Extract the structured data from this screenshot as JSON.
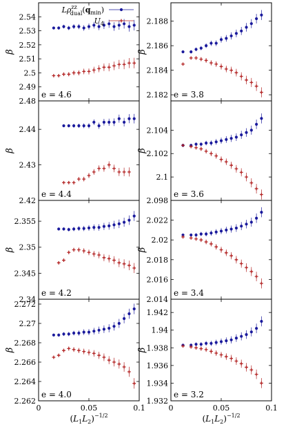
{
  "chart_data": [
    {
      "type": "scatter",
      "panel": "e=4.6",
      "annotation": "e = 4.6",
      "ylabel": "β",
      "ylim": [
        2.48,
        2.55
      ],
      "yticks": [
        "2.48",
        "2.49",
        "2.5",
        "2.51",
        "2.52",
        "2.53",
        "2.54"
      ],
      "legend": {
        "position": "top-right",
        "entries": [
          "Lρ^{zz}_{dual}(q_min)",
          "U_4"
        ]
      },
      "series": [
        {
          "name": "Lρ^{zz}_{dual}(q_min)",
          "color": "#1a1a9c",
          "marker": "circle",
          "x": [
            0.015,
            0.02,
            0.025,
            0.03,
            0.035,
            0.04,
            0.045,
            0.05,
            0.055,
            0.06,
            0.065,
            0.07,
            0.075,
            0.08,
            0.085,
            0.09,
            0.095
          ],
          "y": [
            2.532,
            2.532,
            2.533,
            2.532,
            2.533,
            2.533,
            2.532,
            2.533,
            2.534,
            2.533,
            2.534,
            2.535,
            2.533,
            2.534,
            2.535,
            2.533,
            2.534
          ]
        },
        {
          "name": "U_4",
          "color": "#b22222",
          "marker": "plus",
          "x": [
            0.015,
            0.02,
            0.025,
            0.03,
            0.035,
            0.04,
            0.045,
            0.05,
            0.055,
            0.06,
            0.065,
            0.07,
            0.075,
            0.08,
            0.085,
            0.09,
            0.095
          ],
          "y": [
            2.498,
            2.498,
            2.499,
            2.499,
            2.5,
            2.5,
            2.501,
            2.501,
            2.502,
            2.503,
            2.504,
            2.504,
            2.505,
            2.506,
            2.506,
            2.507,
            2.507
          ]
        }
      ]
    },
    {
      "type": "scatter",
      "panel": "e=3.8",
      "annotation": "e = 3.8",
      "ylabel": "β",
      "ylim": [
        2.1815,
        2.1895
      ],
      "yticks": [
        "2.182",
        "2.184",
        "2.186",
        "2.188"
      ],
      "series": [
        {
          "name": "Lρ^{zz}_{dual}(q_min)",
          "color": "#1a1a9c",
          "marker": "circle",
          "x": [
            0.012,
            0.02,
            0.025,
            0.03,
            0.035,
            0.04,
            0.045,
            0.05,
            0.055,
            0.06,
            0.065,
            0.07,
            0.075,
            0.08,
            0.085,
            0.09
          ],
          "y": [
            2.1855,
            2.1855,
            2.1857,
            2.1858,
            2.186,
            2.1862,
            2.1862,
            2.1865,
            2.1866,
            2.1868,
            2.187,
            2.1872,
            2.1875,
            2.1878,
            2.1882,
            2.1885
          ]
        },
        {
          "name": "U_4",
          "color": "#b22222",
          "marker": "plus",
          "x": [
            0.012,
            0.02,
            0.025,
            0.03,
            0.035,
            0.04,
            0.045,
            0.05,
            0.055,
            0.06,
            0.065,
            0.07,
            0.075,
            0.08,
            0.085,
            0.09
          ],
          "y": [
            2.1845,
            2.185,
            2.185,
            2.1849,
            2.1848,
            2.1846,
            2.1845,
            2.1843,
            2.1841,
            2.184,
            2.1838,
            2.1835,
            2.1832,
            2.183,
            2.1827,
            2.1822
          ]
        }
      ]
    },
    {
      "type": "scatter",
      "panel": "e=4.4",
      "annotation": "e = 4.4",
      "ylabel": "β",
      "ylim": [
        2.42,
        2.448
      ],
      "yticks": [
        "2.42",
        "2.43",
        "2.44"
      ],
      "series": [
        {
          "name": "Lρ^{zz}_{dual}(q_min)",
          "color": "#1a1a9c",
          "marker": "circle",
          "x": [
            0.025,
            0.03,
            0.035,
            0.04,
            0.045,
            0.05,
            0.055,
            0.06,
            0.065,
            0.07,
            0.075,
            0.08,
            0.085,
            0.09,
            0.095
          ],
          "y": [
            2.441,
            2.441,
            2.441,
            2.441,
            2.441,
            2.441,
            2.442,
            2.441,
            2.442,
            2.442,
            2.442,
            2.443,
            2.442,
            2.443,
            2.443
          ]
        },
        {
          "name": "U_4",
          "color": "#b22222",
          "marker": "plus",
          "x": [
            0.025,
            0.03,
            0.035,
            0.04,
            0.045,
            0.05,
            0.055,
            0.06,
            0.065,
            0.07,
            0.075,
            0.08,
            0.085,
            0.09
          ],
          "y": [
            2.425,
            2.425,
            2.425,
            2.426,
            2.426,
            2.427,
            2.428,
            2.429,
            2.429,
            2.43,
            2.429,
            2.428,
            2.428,
            2.428
          ]
        }
      ]
    },
    {
      "type": "scatter",
      "panel": "e=3.6",
      "annotation": "e = 3.6",
      "ylabel": "β",
      "ylim": [
        2.098,
        2.1065
      ],
      "yticks": [
        "2.098",
        "2.1",
        "2.102",
        "2.104"
      ],
      "series": [
        {
          "name": "Lρ^{zz}_{dual}(q_min)",
          "color": "#1a1a9c",
          "marker": "circle",
          "x": [
            0.012,
            0.02,
            0.025,
            0.03,
            0.035,
            0.04,
            0.045,
            0.05,
            0.055,
            0.06,
            0.065,
            0.07,
            0.075,
            0.08,
            0.085,
            0.09
          ],
          "y": [
            2.1027,
            2.1027,
            2.1028,
            2.1028,
            2.1029,
            2.1029,
            2.103,
            2.1031,
            2.1032,
            2.1033,
            2.1034,
            2.1036,
            2.1038,
            2.104,
            2.1045,
            2.105
          ]
        },
        {
          "name": "U_4",
          "color": "#b22222",
          "marker": "plus",
          "x": [
            0.012,
            0.02,
            0.025,
            0.03,
            0.035,
            0.04,
            0.045,
            0.05,
            0.055,
            0.06,
            0.065,
            0.07,
            0.075,
            0.08,
            0.085,
            0.09
          ],
          "y": [
            2.1027,
            2.1026,
            2.1025,
            2.1024,
            2.1022,
            2.102,
            2.1018,
            2.1015,
            2.1013,
            2.101,
            2.1007,
            2.1004,
            2.1,
            2.0995,
            2.099,
            2.0985
          ]
        }
      ]
    },
    {
      "type": "scatter",
      "panel": "e=4.2",
      "annotation": "e = 4.2",
      "ylabel": "β",
      "ylim": [
        2.34,
        2.359
      ],
      "yticks": [
        "2.34",
        "2.345",
        "2.35",
        "2.355"
      ],
      "series": [
        {
          "name": "Lρ^{zz}_{dual}(q_min)",
          "color": "#1a1a9c",
          "marker": "circle",
          "x": [
            0.02,
            0.025,
            0.03,
            0.035,
            0.04,
            0.045,
            0.05,
            0.055,
            0.06,
            0.065,
            0.07,
            0.075,
            0.08,
            0.085,
            0.09,
            0.095
          ],
          "y": [
            2.3535,
            2.3535,
            2.3534,
            2.3535,
            2.3536,
            2.3536,
            2.3537,
            2.3538,
            2.3538,
            2.354,
            2.3541,
            2.3543,
            2.3545,
            2.3548,
            2.3552,
            2.356
          ]
        },
        {
          "name": "U_4",
          "color": "#b22222",
          "marker": "plus",
          "x": [
            0.02,
            0.025,
            0.03,
            0.035,
            0.04,
            0.045,
            0.05,
            0.055,
            0.06,
            0.065,
            0.07,
            0.075,
            0.08,
            0.085,
            0.09,
            0.095
          ],
          "y": [
            2.347,
            2.3475,
            2.349,
            2.3495,
            2.3495,
            2.3493,
            2.349,
            2.3487,
            2.3485,
            2.348,
            2.3478,
            2.3475,
            2.347,
            2.3468,
            2.3465,
            2.346
          ]
        }
      ]
    },
    {
      "type": "scatter",
      "panel": "e=3.4",
      "annotation": "e = 3.4",
      "ylabel": "β",
      "ylim": [
        2.014,
        2.024
      ],
      "yticks": [
        "2.014",
        "2.016",
        "2.018",
        "2.02",
        "2.022"
      ],
      "series": [
        {
          "name": "Lρ^{zz}_{dual}(q_min)",
          "color": "#1a1a9c",
          "marker": "circle",
          "x": [
            0.012,
            0.02,
            0.025,
            0.03,
            0.035,
            0.04,
            0.045,
            0.05,
            0.055,
            0.06,
            0.065,
            0.07,
            0.075,
            0.08,
            0.085,
            0.09
          ],
          "y": [
            2.0205,
            2.0205,
            2.0205,
            2.0206,
            2.0206,
            2.0207,
            2.0208,
            2.0209,
            2.021,
            2.0211,
            2.0212,
            2.0214,
            2.0216,
            2.0218,
            2.0222,
            2.0228
          ]
        },
        {
          "name": "U_4",
          "color": "#b22222",
          "marker": "plus",
          "x": [
            0.012,
            0.02,
            0.025,
            0.03,
            0.035,
            0.04,
            0.045,
            0.05,
            0.055,
            0.06,
            0.065,
            0.07,
            0.075,
            0.08,
            0.085,
            0.09
          ],
          "y": [
            2.0203,
            2.0202,
            2.0201,
            2.02,
            2.0198,
            2.0196,
            2.0193,
            2.019,
            2.0187,
            2.0184,
            2.018,
            2.0176,
            2.0172,
            2.0168,
            2.0163,
            2.0156
          ]
        }
      ]
    },
    {
      "type": "scatter",
      "panel": "e=4.0",
      "annotation": "e = 4.0",
      "xlabel": "(L1L2)^-1/2",
      "ylabel": "β",
      "xlim": [
        0,
        0.1
      ],
      "ylim": [
        2.262,
        2.2725
      ],
      "xticks": [
        "0",
        "0.05",
        "0.1"
      ],
      "yticks": [
        "2.262",
        "2.264",
        "2.266",
        "2.268",
        "2.27",
        "2.272"
      ],
      "series": [
        {
          "name": "Lρ^{zz}_{dual}(q_min)",
          "color": "#1a1a9c",
          "marker": "circle",
          "x": [
            0.015,
            0.02,
            0.025,
            0.03,
            0.035,
            0.04,
            0.045,
            0.05,
            0.055,
            0.06,
            0.065,
            0.07,
            0.075,
            0.08,
            0.085,
            0.09,
            0.095
          ],
          "y": [
            2.2688,
            2.2688,
            2.2689,
            2.2689,
            2.269,
            2.269,
            2.2691,
            2.2691,
            2.2692,
            2.2693,
            2.2694,
            2.2695,
            2.2697,
            2.27,
            2.2705,
            2.271,
            2.2715
          ]
        },
        {
          "name": "U_4",
          "color": "#b22222",
          "marker": "plus",
          "x": [
            0.015,
            0.02,
            0.025,
            0.03,
            0.035,
            0.04,
            0.045,
            0.05,
            0.055,
            0.06,
            0.065,
            0.07,
            0.075,
            0.08,
            0.085,
            0.09,
            0.095
          ],
          "y": [
            2.2665,
            2.2667,
            2.2672,
            2.2674,
            2.2673,
            2.2672,
            2.2671,
            2.267,
            2.2669,
            2.2667,
            2.2665,
            2.2662,
            2.266,
            2.2658,
            2.2655,
            2.265,
            2.2638
          ]
        }
      ]
    },
    {
      "type": "scatter",
      "panel": "e=3.2",
      "annotation": "e = 3.2",
      "xlabel": "(L1L2)^-1/2",
      "ylabel": "β",
      "xlim": [
        0,
        0.1
      ],
      "ylim": [
        1.932,
        1.9435
      ],
      "xticks": [
        "0",
        "0.05",
        "0.1"
      ],
      "yticks": [
        "1.932",
        "1.934",
        "1.936",
        "1.938",
        "1.94",
        "1.942"
      ],
      "series": [
        {
          "name": "Lρ^{zz}_{dual}(q_min)",
          "color": "#1a1a9c",
          "marker": "circle",
          "x": [
            0.012,
            0.02,
            0.025,
            0.03,
            0.035,
            0.04,
            0.045,
            0.05,
            0.055,
            0.06,
            0.065,
            0.07,
            0.075,
            0.08,
            0.085,
            0.09
          ],
          "y": [
            1.9383,
            1.9383,
            1.9384,
            1.9384,
            1.9385,
            1.9385,
            1.9386,
            1.9387,
            1.9388,
            1.9389,
            1.9391,
            1.9393,
            1.9395,
            1.9398,
            1.9402,
            1.941
          ]
        },
        {
          "name": "U_4",
          "color": "#b22222",
          "marker": "plus",
          "x": [
            0.012,
            0.02,
            0.025,
            0.03,
            0.035,
            0.04,
            0.045,
            0.05,
            0.055,
            0.06,
            0.065,
            0.07,
            0.075,
            0.08,
            0.085,
            0.09
          ],
          "y": [
            1.9382,
            1.9381,
            1.938,
            1.9379,
            1.9378,
            1.9376,
            1.9374,
            1.9372,
            1.937,
            1.9368,
            1.9365,
            1.9362,
            1.9358,
            1.9355,
            1.935,
            1.934
          ]
        }
      ]
    }
  ]
}
